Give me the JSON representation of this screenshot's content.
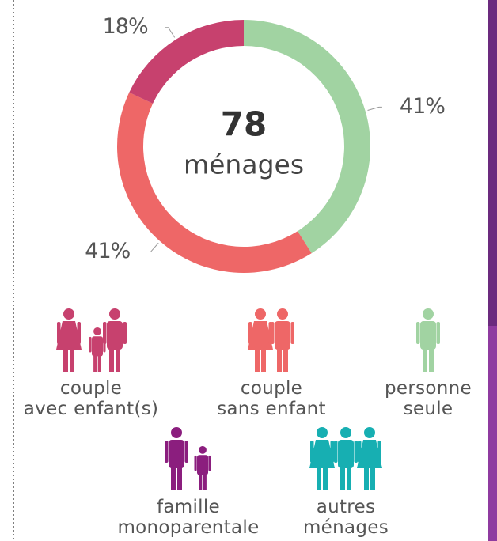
{
  "chart_data": {
    "type": "pie",
    "center_value": "78",
    "center_label": "ménages",
    "categories": [
      "personne\nseule",
      "couple\nsans enfant",
      "couple\navec enfant(s)",
      "famille\nmonoparentale",
      "autres\nménages"
    ],
    "values": [
      41,
      41,
      18,
      0,
      0
    ],
    "value_labels": [
      "41%",
      "41%",
      "18%",
      null,
      null
    ],
    "colors": [
      "#a1d3a2",
      "#ee6767",
      "#c7416e",
      "#8b1e7e",
      "#17afb2"
    ]
  }
}
